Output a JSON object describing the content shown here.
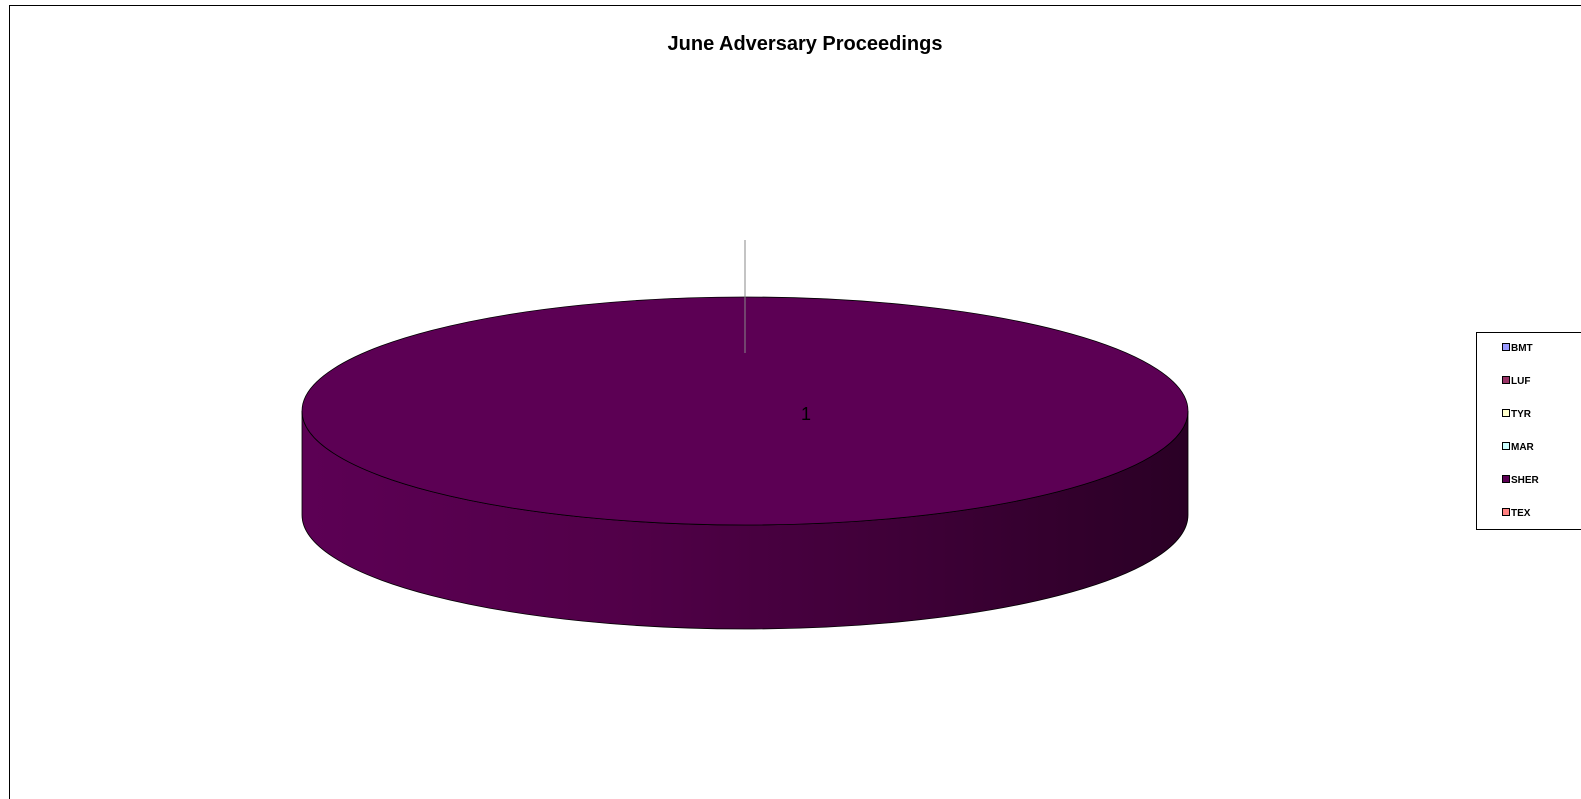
{
  "chart_data": {
    "type": "pie",
    "title": "June Adversary Proceedings",
    "categories": [
      "BMT",
      "LUF",
      "TYR",
      "MAR",
      "SHER",
      "TEX"
    ],
    "values": [
      0,
      0,
      0,
      0,
      1,
      0
    ],
    "data_labels": [
      "1"
    ],
    "legend_position": "right",
    "three_d": true
  },
  "legend": {
    "items": [
      {
        "label": "BMT",
        "color": "#9999ff"
      },
      {
        "label": "LUF",
        "color": "#993366"
      },
      {
        "label": "TYR",
        "color": "#ffffcc"
      },
      {
        "label": "MAR",
        "color": "#ccffff"
      },
      {
        "label": "SHER",
        "color": "#5c0054"
      },
      {
        "label": "TEX",
        "color": "#ff8080"
      }
    ]
  }
}
